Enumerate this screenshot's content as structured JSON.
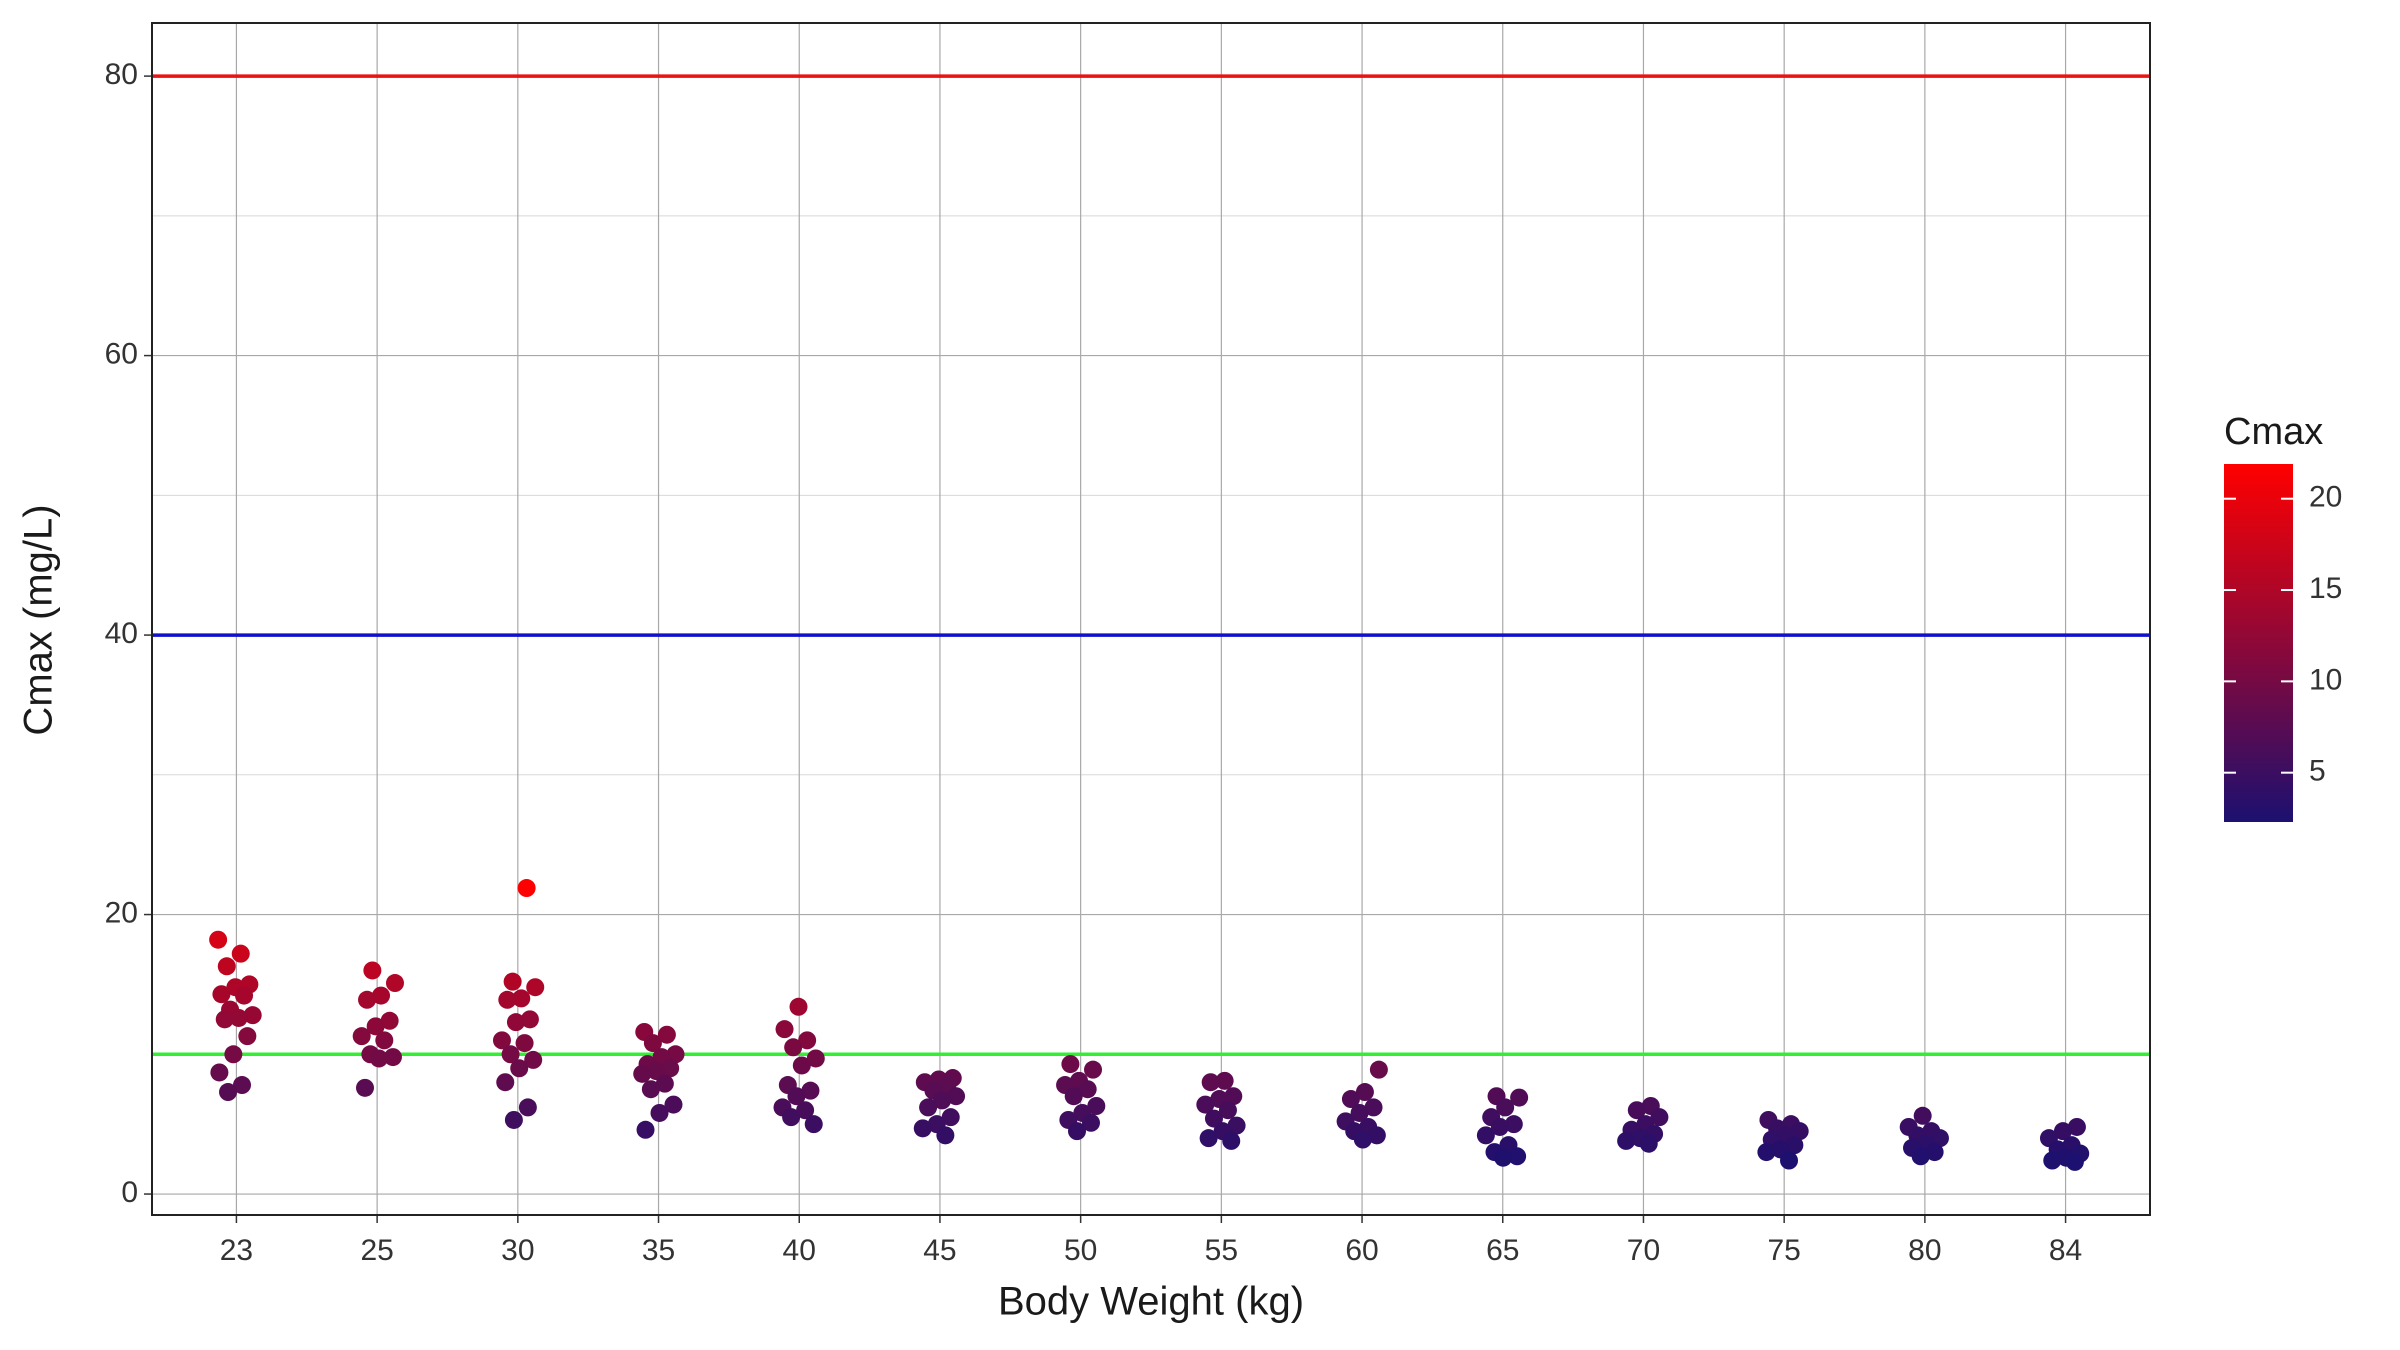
{
  "chart_data": {
    "type": "strip",
    "x_label": "Body Weight (kg)",
    "y_label": "Cmax (mg/L)",
    "categories": [
      "23",
      "25",
      "30",
      "35",
      "40",
      "45",
      "50",
      "55",
      "60",
      "65",
      "70",
      "75",
      "80",
      "84"
    ],
    "values": [
      [
        18.2,
        17.2,
        16.3,
        15.0,
        14.8,
        14.3,
        14.2,
        13.2,
        12.8,
        12.6,
        12.5,
        11.3,
        10.0,
        8.7,
        7.8,
        7.3
      ],
      [
        16.0,
        15.1,
        14.2,
        13.9,
        12.4,
        12.0,
        11.3,
        11.0,
        10.0,
        9.8,
        9.7,
        7.6
      ],
      [
        21.9,
        15.2,
        14.8,
        14.0,
        13.9,
        12.5,
        12.3,
        11.0,
        10.8,
        10.0,
        9.6,
        9.0,
        8.0,
        6.2,
        5.3
      ],
      [
        11.6,
        11.4,
        10.8,
        10.0,
        9.8,
        9.3,
        9.0,
        8.8,
        8.6,
        7.9,
        7.5,
        6.4,
        5.8,
        4.6
      ],
      [
        13.4,
        11.8,
        11.0,
        10.5,
        9.7,
        9.2,
        7.8,
        7.4,
        7.0,
        6.2,
        6.0,
        5.5,
        5.0
      ],
      [
        8.3,
        8.2,
        8.0,
        7.8,
        7.4,
        7.0,
        6.7,
        6.2,
        5.5,
        5.0,
        4.7,
        4.2
      ],
      [
        9.3,
        8.9,
        8.1,
        7.8,
        7.5,
        7.0,
        6.3,
        5.8,
        5.3,
        5.1,
        4.5
      ],
      [
        8.1,
        8.0,
        7.0,
        6.8,
        6.4,
        6.0,
        5.4,
        4.9,
        4.5,
        4.0,
        3.8
      ],
      [
        8.9,
        7.3,
        6.8,
        6.2,
        5.8,
        5.2,
        4.8,
        4.5,
        4.2,
        3.9
      ],
      [
        7.0,
        6.9,
        6.2,
        5.5,
        5.0,
        4.8,
        4.2,
        3.5,
        3.0,
        2.7,
        2.6
      ],
      [
        6.3,
        6.0,
        5.5,
        5.0,
        4.6,
        4.3,
        4.0,
        3.8,
        3.6
      ],
      [
        5.3,
        5.0,
        4.7,
        4.5,
        4.2,
        3.9,
        3.5,
        3.2,
        3.0,
        2.4
      ],
      [
        5.6,
        4.8,
        4.5,
        4.2,
        4.0,
        3.6,
        3.3,
        3.0,
        2.7
      ],
      [
        4.8,
        4.5,
        4.0,
        3.5,
        3.2,
        2.9,
        2.6,
        2.4,
        2.3
      ]
    ],
    "ylim": [
      -1.5,
      83.8
    ],
    "yticks": [
      0,
      20,
      40,
      60,
      80
    ],
    "minor_yticks": [
      10,
      30,
      50,
      70
    ],
    "grid": true,
    "hlines": [
      {
        "value": 80,
        "color": "#ee1111"
      },
      {
        "value": 40,
        "color": "#1111cc"
      },
      {
        "value": 10,
        "color": "#33ee33"
      }
    ],
    "colorbar": {
      "title": "Cmax",
      "lim": [
        2.3,
        21.9
      ],
      "ticks": [
        5,
        10,
        15,
        20
      ],
      "low_color": "#1c1070",
      "high_color": "#ff0000"
    }
  }
}
